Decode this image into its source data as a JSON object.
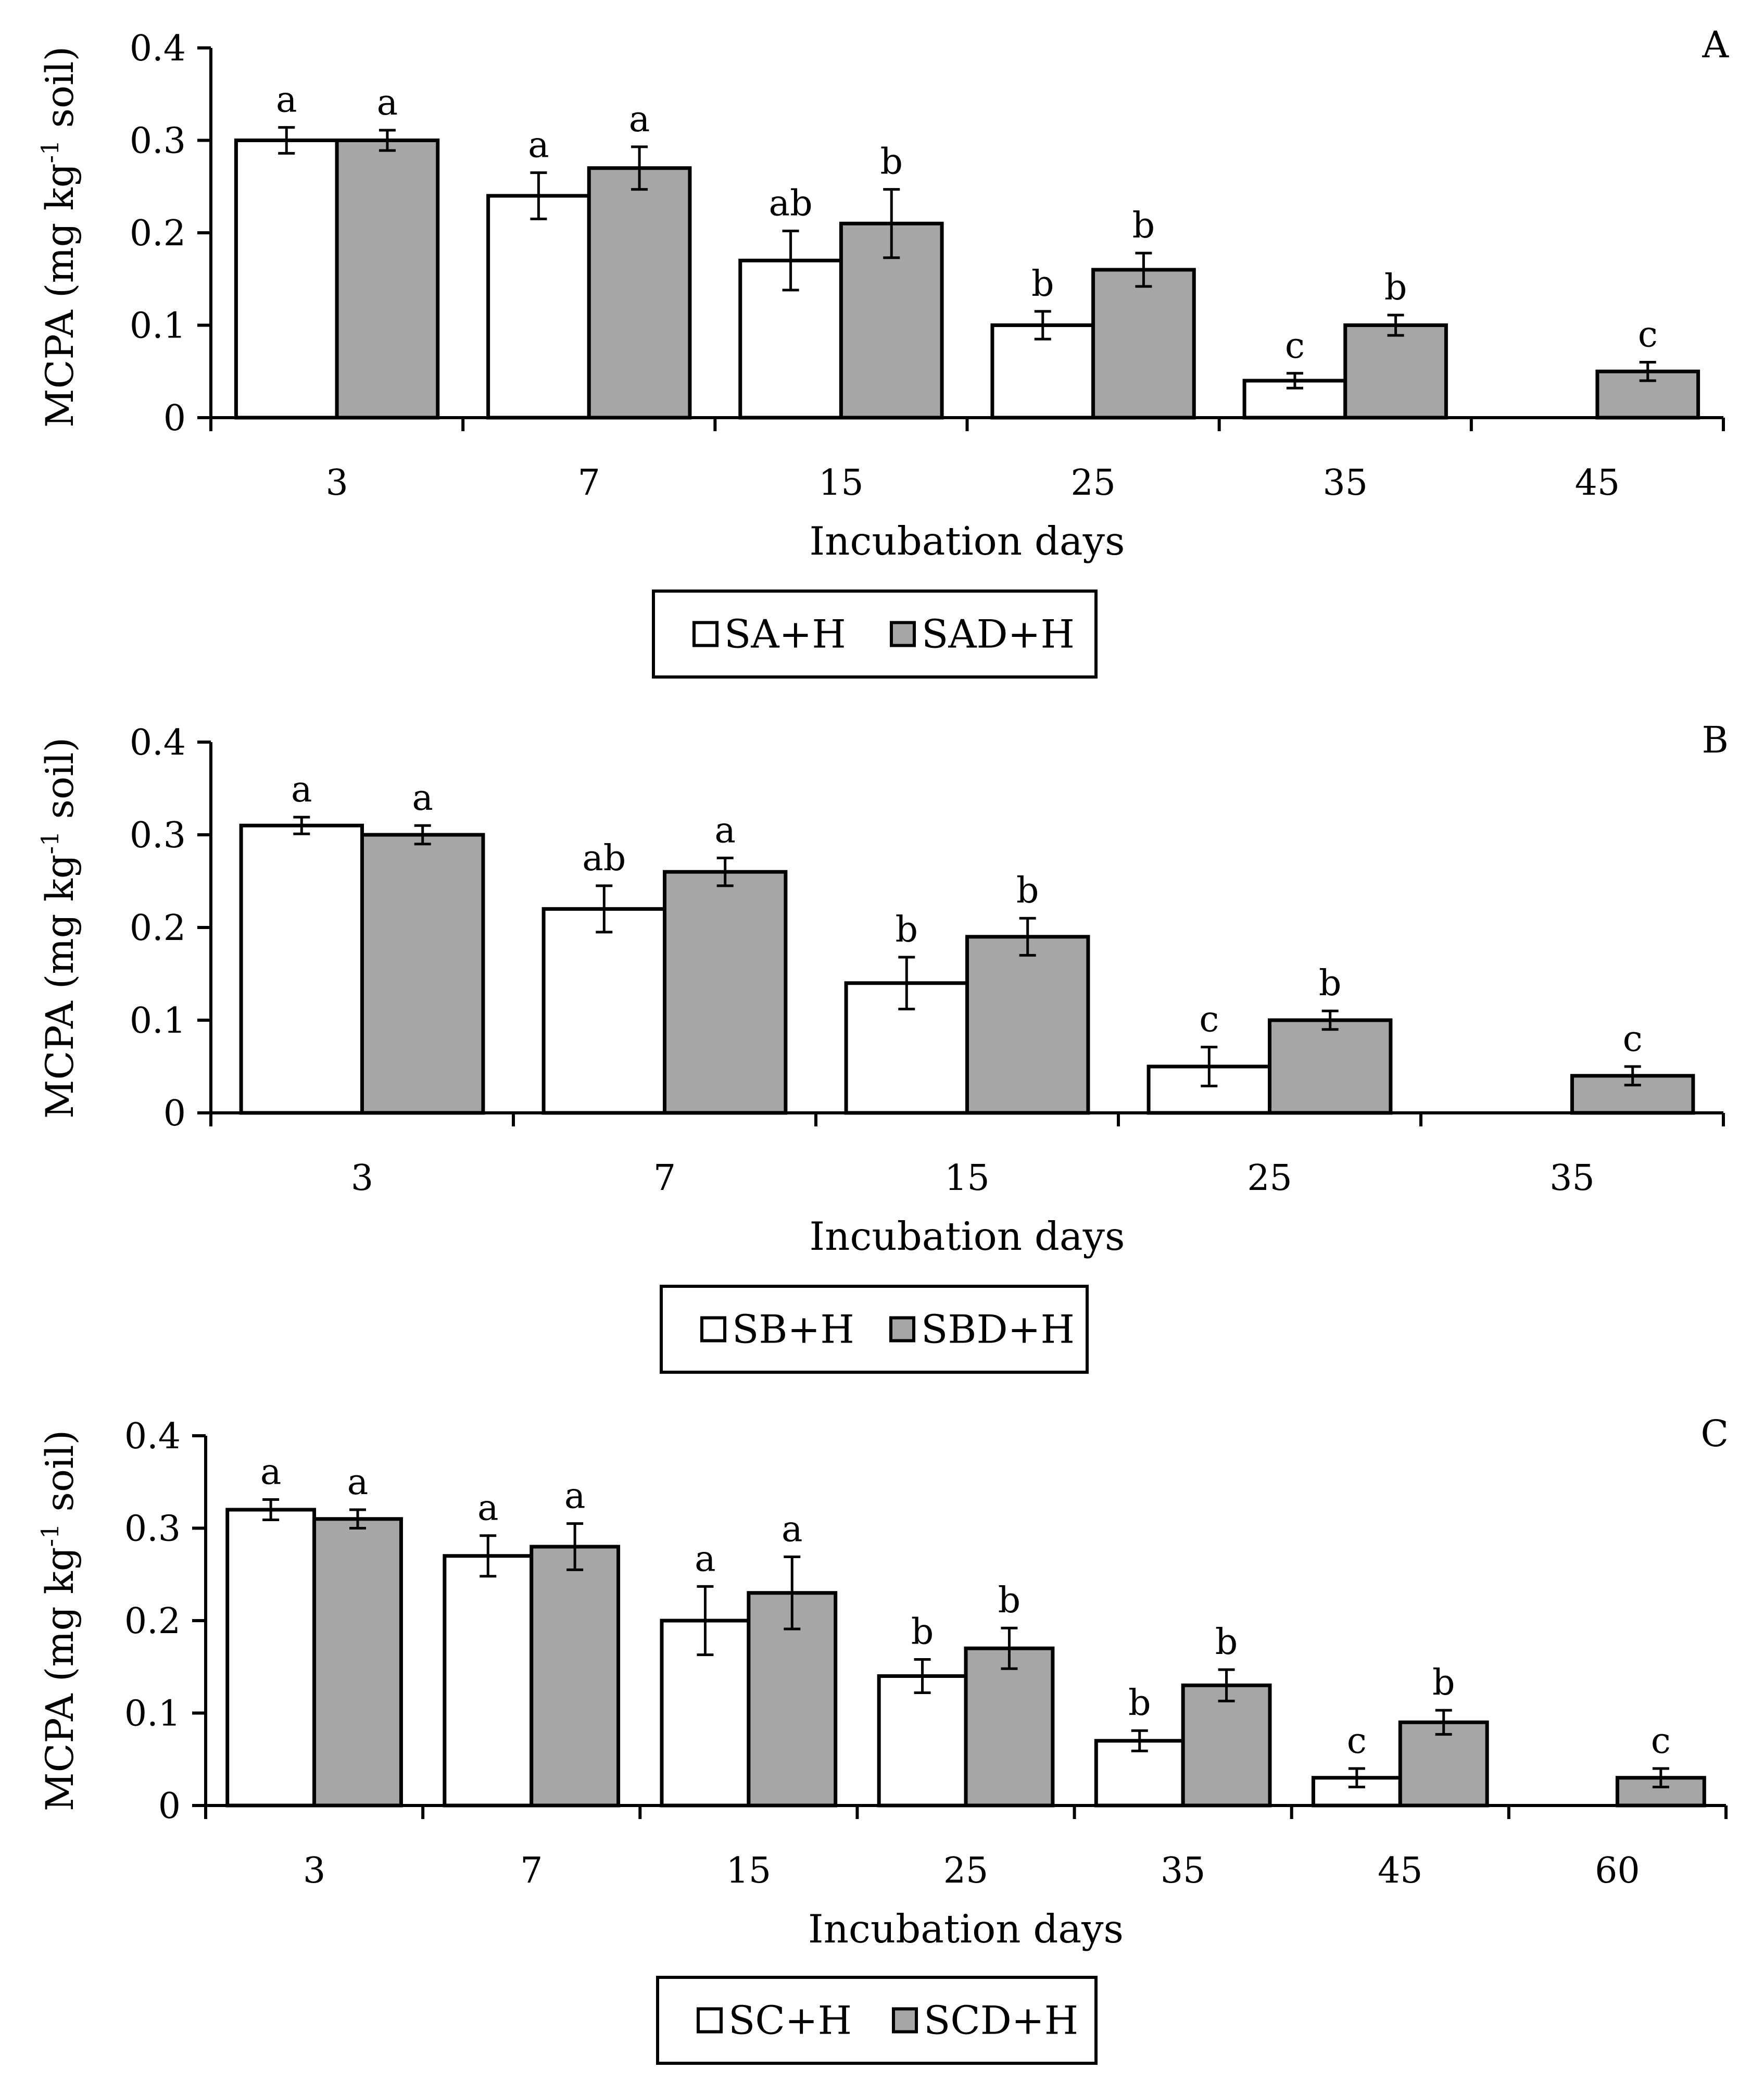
{
  "chart_data": [
    {
      "type": "bar",
      "panel": "A",
      "ylabel_main": "MCPA (mg kg",
      "ylabel_sup": "-1",
      "ylabel_end": " soil)",
      "xlabel": "Incubation days",
      "ylim": [
        0,
        0.4
      ],
      "yticks": [
        "0",
        "0.1",
        "0.2",
        "0.3",
        "0.4"
      ],
      "categories": [
        "3",
        "7",
        "15",
        "25",
        "35",
        "45"
      ],
      "series": [
        {
          "name": "SA+H",
          "color": "#ffffff",
          "values": [
            0.3,
            0.24,
            0.17,
            0.1,
            0.04,
            null
          ],
          "errors": [
            0.014,
            0.025,
            0.032,
            0.015,
            0.008,
            null
          ],
          "letters": [
            "a",
            "a",
            "ab",
            "b",
            "c",
            ""
          ]
        },
        {
          "name": "SAD+H",
          "color": "#a6a6a6",
          "values": [
            0.3,
            0.27,
            0.21,
            0.16,
            0.1,
            0.05
          ],
          "errors": [
            0.011,
            0.023,
            0.037,
            0.018,
            0.011,
            0.01
          ],
          "letters": [
            "a",
            "a",
            "b",
            "b",
            "b",
            "c"
          ]
        }
      ]
    },
    {
      "type": "bar",
      "panel": "B",
      "ylabel_main": "MCPA (mg kg",
      "ylabel_sup": "-1",
      "ylabel_end": " soil)",
      "xlabel": "Incubation days",
      "ylim": [
        0,
        0.4
      ],
      "yticks": [
        "0",
        "0.1",
        "0.2",
        "0.3",
        "0.4"
      ],
      "categories": [
        "3",
        "7",
        "15",
        "25",
        "35"
      ],
      "series": [
        {
          "name": "SB+H",
          "color": "#ffffff",
          "values": [
            0.31,
            0.22,
            0.14,
            0.05,
            null
          ],
          "errors": [
            0.009,
            0.025,
            0.028,
            0.021,
            null
          ],
          "letters": [
            "a",
            "ab",
            "b",
            "c",
            ""
          ]
        },
        {
          "name": "SBD+H",
          "color": "#a6a6a6",
          "values": [
            0.3,
            0.26,
            0.19,
            0.1,
            0.04
          ],
          "errors": [
            0.01,
            0.015,
            0.02,
            0.01,
            0.01
          ],
          "letters": [
            "a",
            "a",
            "b",
            "b",
            "c"
          ]
        }
      ]
    },
    {
      "type": "bar",
      "panel": "C",
      "ylabel_main": "MCPA (mg kg",
      "ylabel_sup": "-1",
      "ylabel_end": " soil)",
      "xlabel": "Incubation days",
      "ylim": [
        0,
        0.4
      ],
      "yticks": [
        "0",
        "0.1",
        "0.2",
        "0.3",
        "0.4"
      ],
      "categories": [
        "3",
        "7",
        "15",
        "25",
        "35",
        "45",
        "60"
      ],
      "series": [
        {
          "name": "SC+H",
          "color": "#ffffff",
          "values": [
            0.32,
            0.27,
            0.2,
            0.14,
            0.07,
            0.03,
            null
          ],
          "errors": [
            0.011,
            0.022,
            0.037,
            0.018,
            0.011,
            0.01,
            null
          ],
          "letters": [
            "a",
            "a",
            "a",
            "b",
            "b",
            "c",
            ""
          ]
        },
        {
          "name": "SCD+H",
          "color": "#a6a6a6",
          "values": [
            0.31,
            0.28,
            0.23,
            0.17,
            0.13,
            0.09,
            0.03
          ],
          "errors": [
            0.01,
            0.025,
            0.039,
            0.022,
            0.017,
            0.013,
            0.01
          ],
          "letters": [
            "a",
            "a",
            "a",
            "b",
            "b",
            "b",
            "c"
          ]
        }
      ]
    }
  ]
}
